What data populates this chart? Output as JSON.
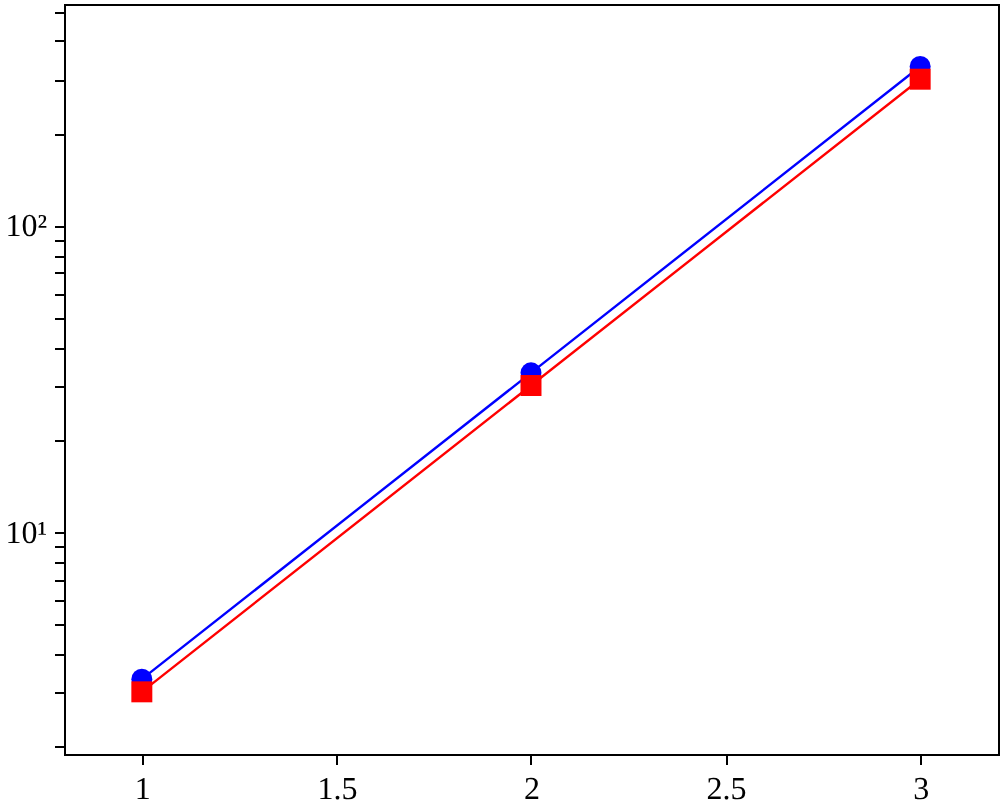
{
  "chart_data": {
    "type": "line",
    "x": [
      1,
      2,
      3
    ],
    "series": [
      {
        "color": "#0000ff",
        "marker": "circle",
        "values": [
          3.3,
          33,
          330
        ]
      },
      {
        "color": "#ff0000",
        "marker": "square",
        "values": [
          3,
          30,
          300
        ]
      }
    ],
    "log": "y",
    "xlim": [
      0.8,
      3.2
    ],
    "ylim": [
      1.88,
      528
    ],
    "xticks": [
      1,
      1.5,
      2,
      2.5,
      3
    ],
    "yticks": [
      {
        "value": 2,
        "label": null
      },
      {
        "value": 3,
        "label": null
      },
      {
        "value": 4,
        "label": null
      },
      {
        "value": 5,
        "label": null
      },
      {
        "value": 6,
        "label": null
      },
      {
        "value": 7,
        "label": null
      },
      {
        "value": 8,
        "label": null
      },
      {
        "value": 9,
        "label": null
      },
      {
        "value": 10,
        "label": "10¹"
      },
      {
        "value": 20,
        "label": null
      },
      {
        "value": 30,
        "label": null
      },
      {
        "value": 40,
        "label": null
      },
      {
        "value": 50,
        "label": null
      },
      {
        "value": 60,
        "label": null
      },
      {
        "value": 70,
        "label": null
      },
      {
        "value": 80,
        "label": null
      },
      {
        "value": 90,
        "label": null
      },
      {
        "value": 100,
        "label": "10²"
      },
      {
        "value": 200,
        "label": null
      },
      {
        "value": 300,
        "label": null
      },
      {
        "value": 400,
        "label": null
      },
      {
        "value": 500,
        "label": null
      }
    ],
    "grid": false,
    "line_style": "solid"
  }
}
